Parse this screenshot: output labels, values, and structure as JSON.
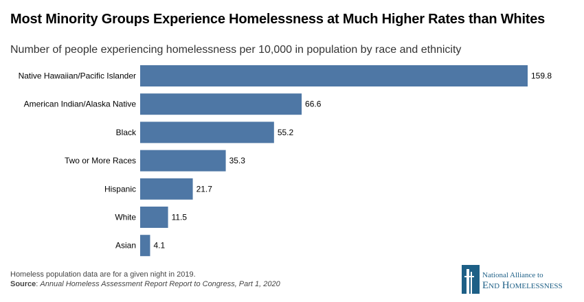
{
  "title": "Most Minority Groups Experience Homelessness at Much Higher Rates than Whites",
  "subtitle": "Number of people experiencing homelessness per 10,000 in population by race and ethnicity",
  "chart_data": {
    "type": "bar",
    "orientation": "horizontal",
    "categories": [
      "Native Hawaiian/Pacific Islander",
      "American Indian/Alaska Native",
      "Black",
      "Two or More Races",
      "Hispanic",
      "White",
      "Asian"
    ],
    "values": [
      159.8,
      66.6,
      55.2,
      35.3,
      21.7,
      11.5,
      4.1
    ],
    "data_labels": [
      "159.8",
      "66.6",
      "55.2",
      "35.3",
      "21.7",
      "11.5",
      "4.1"
    ],
    "title": "Most Minority Groups Experience Homelessness at Much Higher Rates than Whites",
    "xlabel": "",
    "ylabel": "",
    "xlim": [
      0,
      160
    ],
    "grid": false,
    "bar_color": "#4e77a5"
  },
  "footnote": {
    "note": "Homeless population data are for a given night in 2019.",
    "source_label": "Source",
    "source_text": "Annual Homeless Assessment Report Report to Congress, Part 1, 2020"
  },
  "logo": {
    "line1": "National Alliance to",
    "line2": "End Homelessness",
    "color": "#1d5f86"
  }
}
